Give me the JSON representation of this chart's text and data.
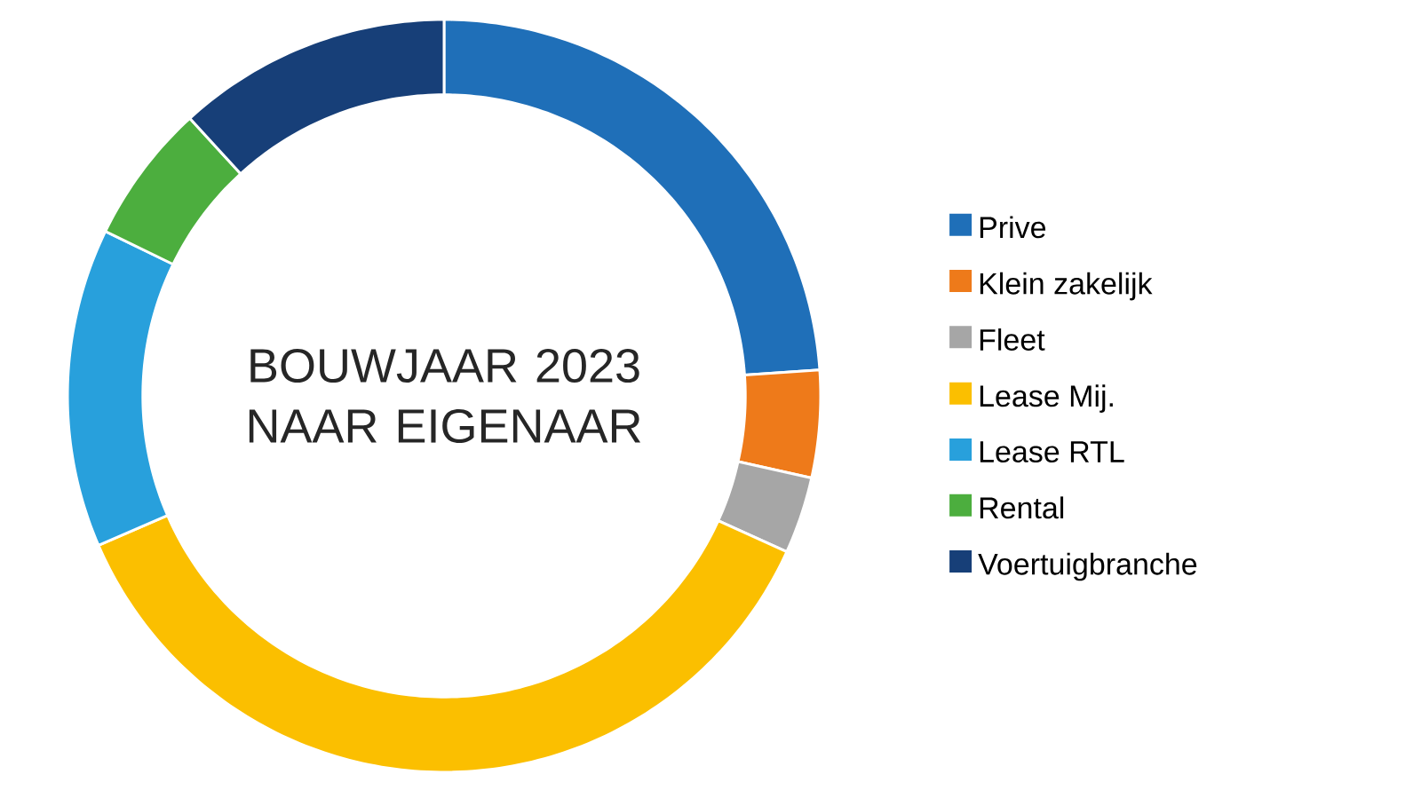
{
  "chart_data": {
    "type": "donut",
    "title": "BOUWJAAR 2023 NAAR EIGENAAR",
    "categories": [
      "Prive",
      "Klein zakelijk",
      "Fleet",
      "Lease Mij.",
      "Lease RTL",
      "Rental",
      "Voertuigbranche"
    ],
    "values": [
      23.9,
      4.6,
      3.3,
      36.7,
      13.7,
      6.0,
      11.8
    ],
    "colors": [
      "#1f6fb8",
      "#ee7a1a",
      "#a6a6a6",
      "#fbbf00",
      "#28a0dc",
      "#4cae3e",
      "#173f78"
    ],
    "legend": "right"
  }
}
